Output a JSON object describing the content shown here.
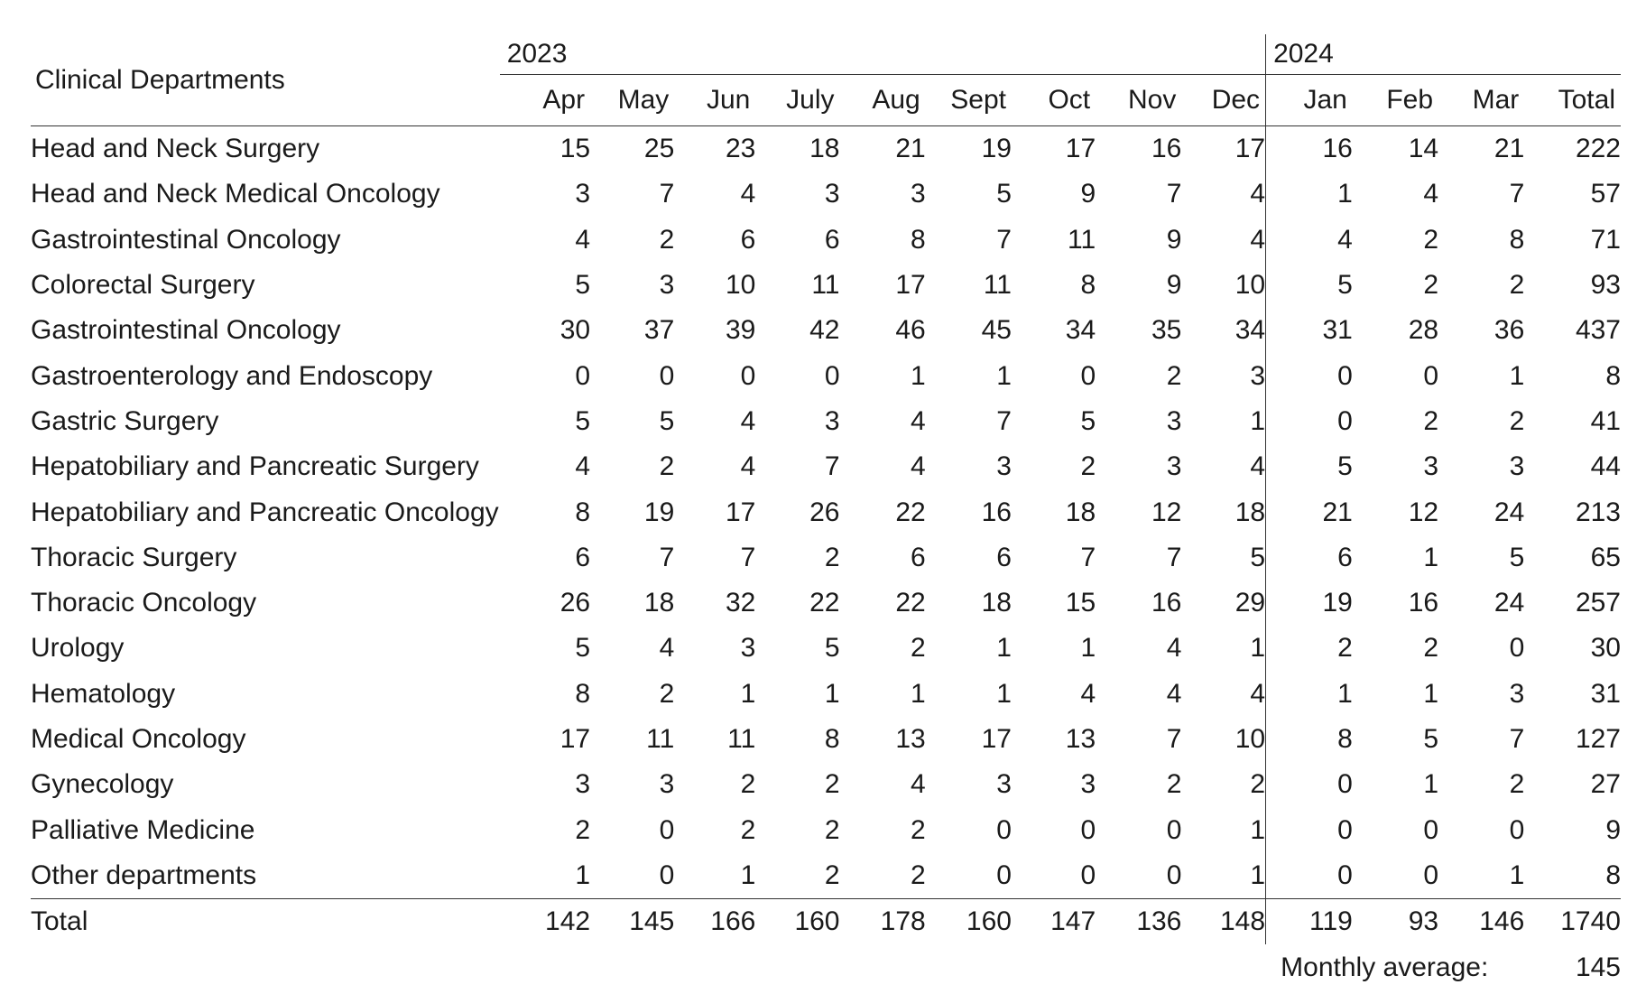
{
  "header": {
    "department_col": "Clinical Departments",
    "year_2023": "2023",
    "year_2024": "2024",
    "months_2023": [
      "Apr",
      "May",
      "Jun",
      "July",
      "Aug",
      "Sept",
      "Oct",
      "Nov",
      "Dec"
    ],
    "months_2024": [
      "Jan",
      "Feb",
      "Mar"
    ],
    "total_col": "Total"
  },
  "rows": [
    {
      "dept": "Head and Neck Surgery",
      "values": [
        "15",
        "25",
        "23",
        "18",
        "21",
        "19",
        "17",
        "16",
        "17",
        "16",
        "14",
        "21"
      ],
      "total": "222"
    },
    {
      "dept": "Head and Neck Medical Oncology",
      "values": [
        "3",
        "7",
        "4",
        "3",
        "3",
        "5",
        "9",
        "7",
        "4",
        "1",
        "4",
        "7"
      ],
      "total": "57"
    },
    {
      "dept": "Gastrointestinal Oncology",
      "values": [
        "4",
        "2",
        "6",
        "6",
        "8",
        "7",
        "11",
        "9",
        "4",
        "4",
        "2",
        "8"
      ],
      "total": "71"
    },
    {
      "dept": "Colorectal Surgery",
      "values": [
        "5",
        "3",
        "10",
        "11",
        "17",
        "11",
        "8",
        "9",
        "10",
        "5",
        "2",
        "2"
      ],
      "total": "93"
    },
    {
      "dept": "Gastrointestinal Oncology",
      "values": [
        "30",
        "37",
        "39",
        "42",
        "46",
        "45",
        "34",
        "35",
        "34",
        "31",
        "28",
        "36"
      ],
      "total": "437"
    },
    {
      "dept": "Gastroenterology and Endoscopy",
      "values": [
        "0",
        "0",
        "0",
        "0",
        "1",
        "1",
        "0",
        "2",
        "3",
        "0",
        "0",
        "1"
      ],
      "total": "8"
    },
    {
      "dept": "Gastric Surgery",
      "values": [
        "5",
        "5",
        "4",
        "3",
        "4",
        "7",
        "5",
        "3",
        "1",
        "0",
        "2",
        "2"
      ],
      "total": "41"
    },
    {
      "dept": "Hepatobiliary and Pancreatic Surgery",
      "values": [
        "4",
        "2",
        "4",
        "7",
        "4",
        "3",
        "2",
        "3",
        "4",
        "5",
        "3",
        "3"
      ],
      "total": "44"
    },
    {
      "dept": "Hepatobiliary and Pancreatic Oncology",
      "values": [
        "8",
        "19",
        "17",
        "26",
        "22",
        "16",
        "18",
        "12",
        "18",
        "21",
        "12",
        "24"
      ],
      "total": "213"
    },
    {
      "dept": "Thoracic Surgery",
      "values": [
        "6",
        "7",
        "7",
        "2",
        "6",
        "6",
        "7",
        "7",
        "5",
        "6",
        "1",
        "5"
      ],
      "total": "65"
    },
    {
      "dept": "Thoracic Oncology",
      "values": [
        "26",
        "18",
        "32",
        "22",
        "22",
        "18",
        "15",
        "16",
        "29",
        "19",
        "16",
        "24"
      ],
      "total": "257"
    },
    {
      "dept": "Urology",
      "values": [
        "5",
        "4",
        "3",
        "5",
        "2",
        "1",
        "1",
        "4",
        "1",
        "2",
        "2",
        "0"
      ],
      "total": "30"
    },
    {
      "dept": "Hematology",
      "values": [
        "8",
        "2",
        "1",
        "1",
        "1",
        "1",
        "4",
        "4",
        "4",
        "1",
        "1",
        "3"
      ],
      "total": "31"
    },
    {
      "dept": "Medical Oncology",
      "values": [
        "17",
        "11",
        "11",
        "8",
        "13",
        "17",
        "13",
        "7",
        "10",
        "8",
        "5",
        "7"
      ],
      "total": "127"
    },
    {
      "dept": "Gynecology",
      "values": [
        "3",
        "3",
        "2",
        "2",
        "4",
        "3",
        "3",
        "2",
        "2",
        "0",
        "1",
        "2"
      ],
      "total": "27"
    },
    {
      "dept": "Palliative Medicine",
      "values": [
        "2",
        "0",
        "2",
        "2",
        "2",
        "0",
        "0",
        "0",
        "1",
        "0",
        "0",
        "0"
      ],
      "total": "9"
    },
    {
      "dept": "Other departments",
      "values": [
        "1",
        "0",
        "1",
        "2",
        "2",
        "0",
        "0",
        "0",
        "1",
        "0",
        "0",
        "1"
      ],
      "total": "8"
    }
  ],
  "totals": {
    "label": "Total",
    "values": [
      "142",
      "145",
      "166",
      "160",
      "178",
      "160",
      "147",
      "136",
      "148",
      "119",
      "93",
      "146"
    ],
    "total": "1740"
  },
  "average": {
    "label": "Monthly average:",
    "value": "145"
  }
}
